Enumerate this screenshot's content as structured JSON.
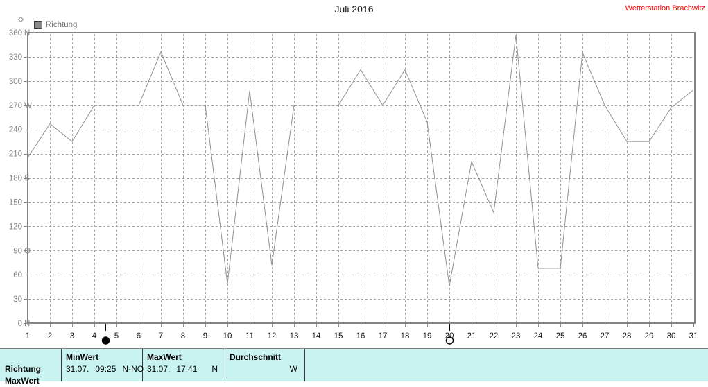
{
  "header": {
    "station": "Wetterstation Brachwitz"
  },
  "legend": {
    "label": "Richtung"
  },
  "chart_data": {
    "type": "line",
    "title": "Juli 2016",
    "series": [
      {
        "name": "Richtung"
      }
    ],
    "x": [
      1,
      2,
      3,
      4,
      5,
      6,
      7,
      8,
      9,
      10,
      11,
      12,
      13,
      14,
      15,
      16,
      17,
      18,
      19,
      20,
      21,
      22,
      23,
      24,
      25,
      26,
      27,
      28,
      29,
      30,
      31
    ],
    "values": [
      205,
      247,
      225,
      270,
      270,
      270,
      336,
      270,
      270,
      49,
      288,
      72,
      270,
      270,
      270,
      314,
      270,
      314,
      249,
      46,
      200,
      137,
      357,
      68,
      68,
      335,
      270,
      225,
      225,
      267,
      289
    ],
    "xlim": [
      1,
      31
    ],
    "ylim": [
      0,
      360
    ],
    "y_ticks": [
      {
        "value": 360,
        "label": "360",
        "dir": "N"
      },
      {
        "value": 330,
        "label": "330",
        "dir": ""
      },
      {
        "value": 300,
        "label": "300",
        "dir": ""
      },
      {
        "value": 270,
        "label": "270",
        "dir": "W"
      },
      {
        "value": 240,
        "label": "240",
        "dir": ""
      },
      {
        "value": 210,
        "label": "210",
        "dir": ""
      },
      {
        "value": 180,
        "label": "180",
        "dir": "S"
      },
      {
        "value": 150,
        "label": "150",
        "dir": ""
      },
      {
        "value": 120,
        "label": "120",
        "dir": ""
      },
      {
        "value": 90,
        "label": "90",
        "dir": "O"
      },
      {
        "value": 60,
        "label": "60",
        "dir": ""
      },
      {
        "value": 30,
        "label": "30",
        "dir": ""
      },
      {
        "value": 0,
        "label": "0",
        "dir": "N"
      }
    ],
    "markers": [
      {
        "day": 4.5,
        "type": "new-moon"
      },
      {
        "day": 20,
        "type": "full-moon"
      }
    ],
    "grid": true,
    "legend_position": "top-left",
    "colors": {
      "line": "#8f8f8f",
      "grid": "#a2a2a2",
      "frame": "#848484",
      "axis_text": "#858585",
      "x_text": "#1a1a1a",
      "station_text": "#ff0000",
      "table_bg": "#c9f3f0"
    }
  },
  "table": {
    "row_label": "Richtung",
    "next_row_label": "MaxWert",
    "cols": [
      {
        "header": "MinWert",
        "date": "31.07.",
        "time": "09:25",
        "value": "N-NO"
      },
      {
        "header": "MaxWert",
        "date": "31.07.",
        "time": "17:41",
        "value": "N"
      },
      {
        "header": "Durchschnitt",
        "date": "",
        "time": "",
        "value": "W"
      }
    ]
  }
}
